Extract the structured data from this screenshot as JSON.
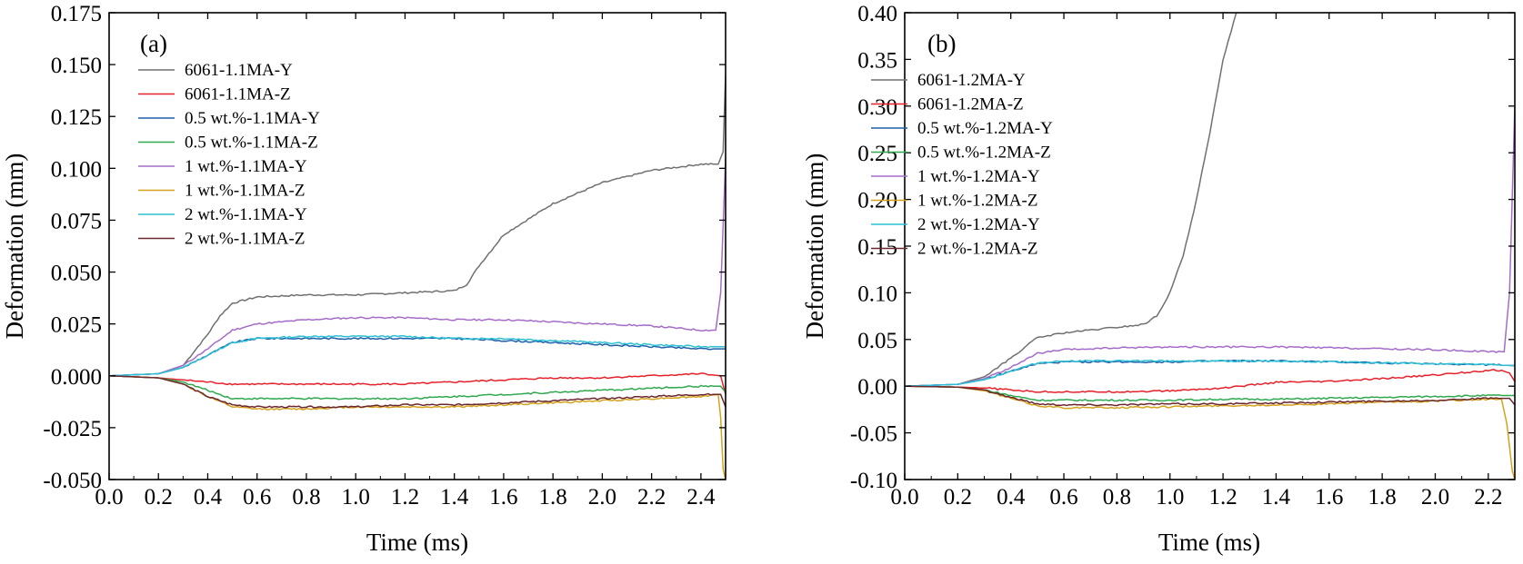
{
  "chart_data": [
    {
      "type": "line",
      "panel_label": "(a)",
      "xlabel": "Time (ms)",
      "ylabel": "Deformation (mm)",
      "xlim": [
        0.0,
        2.5
      ],
      "ylim": [
        -0.05,
        0.175
      ],
      "xticks": [
        "0.0",
        "0.2",
        "0.4",
        "0.6",
        "0.8",
        "1.0",
        "1.2",
        "1.4",
        "1.6",
        "1.8",
        "2.0",
        "2.2",
        "2.4"
      ],
      "yticks": [
        "0.175",
        "0.150",
        "0.125",
        "0.100",
        "0.075",
        "0.050",
        "0.025",
        "0.000",
        "-0.025",
        "-0.050"
      ],
      "legend_position": "top-left",
      "series": [
        {
          "name": "6061-1.1MA-Y",
          "color": "#707070",
          "x": [
            0,
            0.2,
            0.3,
            0.4,
            0.45,
            0.5,
            0.6,
            0.8,
            1.0,
            1.2,
            1.4,
            1.45,
            1.5,
            1.6,
            1.8,
            2.0,
            2.2,
            2.4,
            2.47,
            2.49,
            2.5
          ],
          "y": [
            0,
            0.001,
            0.005,
            0.02,
            0.029,
            0.035,
            0.038,
            0.039,
            0.039,
            0.04,
            0.041,
            0.044,
            0.053,
            0.068,
            0.083,
            0.093,
            0.099,
            0.102,
            0.102,
            0.108,
            0.145
          ]
        },
        {
          "name": "6061-1.1MA-Z",
          "color": "#e8202a",
          "x": [
            0,
            0.2,
            0.3,
            0.4,
            0.5,
            0.6,
            0.8,
            1.0,
            1.2,
            1.4,
            1.6,
            1.8,
            2.0,
            2.2,
            2.4,
            2.48,
            2.5
          ],
          "y": [
            0,
            -0.001,
            -0.002,
            -0.003,
            -0.004,
            -0.004,
            -0.004,
            -0.004,
            -0.004,
            -0.003,
            -0.002,
            -0.001,
            -0.001,
            0,
            0.001,
            0,
            -0.009
          ]
        },
        {
          "name": "0.5 wt.%-1.1MA-Y",
          "color": "#1f5faa",
          "x": [
            0,
            0.2,
            0.3,
            0.4,
            0.5,
            0.6,
            0.8,
            1.0,
            1.2,
            1.4,
            1.6,
            1.8,
            2.0,
            2.2,
            2.4,
            2.5
          ],
          "y": [
            0,
            0.001,
            0.004,
            0.01,
            0.016,
            0.018,
            0.018,
            0.018,
            0.018,
            0.018,
            0.017,
            0.016,
            0.015,
            0.014,
            0.013,
            0.013
          ]
        },
        {
          "name": "0.5 wt.%-1.1MA-Z",
          "color": "#2fa84f",
          "x": [
            0,
            0.2,
            0.3,
            0.4,
            0.5,
            0.6,
            0.8,
            1.0,
            1.2,
            1.4,
            1.6,
            1.8,
            2.0,
            2.2,
            2.4,
            2.48,
            2.5
          ],
          "y": [
            0,
            -0.001,
            -0.003,
            -0.007,
            -0.011,
            -0.011,
            -0.011,
            -0.011,
            -0.011,
            -0.01,
            -0.009,
            -0.008,
            -0.007,
            -0.006,
            -0.005,
            -0.005,
            -0.008
          ]
        },
        {
          "name": "1 wt.%-1.1MA-Y",
          "color": "#a46cc8",
          "x": [
            0,
            0.2,
            0.3,
            0.4,
            0.5,
            0.6,
            0.8,
            1.0,
            1.2,
            1.4,
            1.6,
            1.8,
            2.0,
            2.2,
            2.4,
            2.46,
            2.48,
            2.5
          ],
          "y": [
            0,
            0.001,
            0.005,
            0.013,
            0.022,
            0.025,
            0.027,
            0.028,
            0.028,
            0.027,
            0.027,
            0.026,
            0.025,
            0.024,
            0.022,
            0.022,
            0.04,
            0.105
          ]
        },
        {
          "name": "1 wt.%-1.1MA-Z",
          "color": "#d4a21c",
          "x": [
            0,
            0.2,
            0.3,
            0.4,
            0.5,
            0.6,
            0.8,
            1.0,
            1.2,
            1.4,
            1.6,
            1.8,
            2.0,
            2.2,
            2.4,
            2.47,
            2.48,
            2.49,
            2.5
          ],
          "y": [
            0,
            -0.001,
            -0.004,
            -0.01,
            -0.015,
            -0.016,
            -0.016,
            -0.015,
            -0.015,
            -0.015,
            -0.014,
            -0.013,
            -0.012,
            -0.011,
            -0.01,
            -0.009,
            -0.02,
            -0.045,
            -0.05
          ]
        },
        {
          "name": "2 wt.%-1.1MA-Y",
          "color": "#2cc0d4",
          "x": [
            0,
            0.2,
            0.3,
            0.4,
            0.5,
            0.6,
            0.8,
            1.0,
            1.2,
            1.4,
            1.6,
            1.8,
            2.0,
            2.2,
            2.4,
            2.5
          ],
          "y": [
            0,
            0.001,
            0.004,
            0.01,
            0.016,
            0.018,
            0.019,
            0.019,
            0.019,
            0.018,
            0.018,
            0.017,
            0.016,
            0.015,
            0.014,
            0.014
          ]
        },
        {
          "name": "2 wt.%-1.1MA-Z",
          "color": "#6b2830",
          "x": [
            0,
            0.2,
            0.3,
            0.4,
            0.5,
            0.6,
            0.8,
            1.0,
            1.2,
            1.4,
            1.6,
            1.8,
            2.0,
            2.2,
            2.4,
            2.48,
            2.5
          ],
          "y": [
            0,
            -0.001,
            -0.004,
            -0.01,
            -0.014,
            -0.015,
            -0.015,
            -0.015,
            -0.014,
            -0.014,
            -0.013,
            -0.012,
            -0.011,
            -0.01,
            -0.009,
            -0.009,
            -0.015
          ]
        }
      ]
    },
    {
      "type": "line",
      "panel_label": "(b)",
      "xlabel": "Time (ms)",
      "ylabel": "Deformation (mm)",
      "xlim": [
        0.0,
        2.3
      ],
      "ylim": [
        -0.1,
        0.4
      ],
      "xticks": [
        "0.0",
        "0.2",
        "0.4",
        "0.6",
        "0.8",
        "1.0",
        "1.2",
        "1.4",
        "1.6",
        "1.8",
        "2.0",
        "2.2"
      ],
      "yticks": [
        "0.40",
        "0.35",
        "0.30",
        "0.25",
        "0.20",
        "0.15",
        "0.10",
        "0.05",
        "0.00",
        "-0.05",
        "-0.10"
      ],
      "legend_position": "top-left",
      "series": [
        {
          "name": "6061-1.2MA-Y",
          "color": "#707070",
          "x": [
            0,
            0.2,
            0.3,
            0.4,
            0.5,
            0.6,
            0.7,
            0.8,
            0.9,
            0.95,
            1.0,
            1.05,
            1.1,
            1.15,
            1.2,
            1.25
          ],
          "y": [
            0,
            0.002,
            0.01,
            0.03,
            0.052,
            0.057,
            0.06,
            0.063,
            0.066,
            0.075,
            0.1,
            0.14,
            0.2,
            0.27,
            0.35,
            0.4
          ]
        },
        {
          "name": "6061-1.2MA-Z",
          "color": "#e8202a",
          "x": [
            0,
            0.2,
            0.3,
            0.4,
            0.5,
            0.6,
            0.8,
            1.0,
            1.2,
            1.4,
            1.6,
            1.8,
            2.0,
            2.2,
            2.25,
            2.28,
            2.3
          ],
          "y": [
            0,
            -0.001,
            -0.002,
            -0.004,
            -0.006,
            -0.006,
            -0.006,
            -0.005,
            -0.002,
            0.004,
            0.005,
            0.008,
            0.012,
            0.017,
            0.017,
            0.014,
            0.005
          ]
        },
        {
          "name": "0.5 wt.%-1.2MA-Y",
          "color": "#1f5faa",
          "x": [
            0,
            0.2,
            0.3,
            0.4,
            0.5,
            0.6,
            0.8,
            1.0,
            1.2,
            1.4,
            1.6,
            1.8,
            2.0,
            2.2,
            2.3
          ],
          "y": [
            0,
            0.002,
            0.007,
            0.016,
            0.024,
            0.026,
            0.026,
            0.026,
            0.027,
            0.027,
            0.026,
            0.025,
            0.024,
            0.023,
            0.022
          ]
        },
        {
          "name": "0.5 wt.%-1.2MA-Z",
          "color": "#2fa84f",
          "x": [
            0,
            0.2,
            0.3,
            0.4,
            0.5,
            0.6,
            0.8,
            1.0,
            1.2,
            1.4,
            1.6,
            1.8,
            2.0,
            2.2,
            2.3
          ],
          "y": [
            0,
            -0.001,
            -0.004,
            -0.01,
            -0.015,
            -0.015,
            -0.015,
            -0.015,
            -0.014,
            -0.014,
            -0.013,
            -0.012,
            -0.011,
            -0.01,
            -0.01
          ]
        },
        {
          "name": "1 wt.%-1.2MA-Y",
          "color": "#a46cc8",
          "x": [
            0,
            0.2,
            0.3,
            0.4,
            0.5,
            0.6,
            0.8,
            1.0,
            1.2,
            1.4,
            1.6,
            1.8,
            2.0,
            2.2,
            2.26,
            2.28,
            2.3
          ],
          "y": [
            0,
            0.002,
            0.008,
            0.02,
            0.035,
            0.039,
            0.041,
            0.042,
            0.042,
            0.042,
            0.041,
            0.04,
            0.039,
            0.037,
            0.037,
            0.1,
            0.3
          ]
        },
        {
          "name": "1 wt.%-1.2MA-Z",
          "color": "#d4a21c",
          "x": [
            0,
            0.2,
            0.3,
            0.4,
            0.5,
            0.6,
            0.8,
            1.0,
            1.2,
            1.4,
            1.6,
            1.8,
            2.0,
            2.2,
            2.25,
            2.27,
            2.29,
            2.3
          ],
          "y": [
            0,
            -0.001,
            -0.005,
            -0.013,
            -0.021,
            -0.023,
            -0.023,
            -0.022,
            -0.021,
            -0.02,
            -0.019,
            -0.017,
            -0.016,
            -0.014,
            -0.014,
            -0.04,
            -0.09,
            -0.1
          ]
        },
        {
          "name": "2 wt.%-1.2MA-Y",
          "color": "#2cc0d4",
          "x": [
            0,
            0.2,
            0.3,
            0.4,
            0.5,
            0.6,
            0.8,
            1.0,
            1.2,
            1.4,
            1.6,
            1.8,
            2.0,
            2.2,
            2.3
          ],
          "y": [
            0,
            0.002,
            0.007,
            0.016,
            0.025,
            0.027,
            0.027,
            0.027,
            0.027,
            0.027,
            0.026,
            0.025,
            0.024,
            0.023,
            0.022
          ]
        },
        {
          "name": "2 wt.%-1.2MA-Z",
          "color": "#6b2830",
          "x": [
            0,
            0.2,
            0.3,
            0.4,
            0.5,
            0.6,
            0.8,
            1.0,
            1.2,
            1.4,
            1.6,
            1.8,
            2.0,
            2.2,
            2.28,
            2.3
          ],
          "y": [
            0,
            -0.001,
            -0.004,
            -0.012,
            -0.019,
            -0.02,
            -0.02,
            -0.019,
            -0.019,
            -0.018,
            -0.017,
            -0.016,
            -0.015,
            -0.013,
            -0.013,
            -0.02
          ]
        }
      ]
    }
  ]
}
